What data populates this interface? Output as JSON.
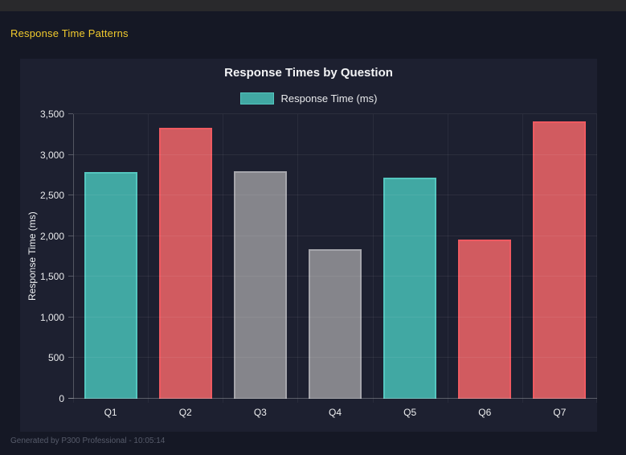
{
  "page": {
    "top_title": "Response Time Patterns",
    "footer": "Generated by P300 Professional - 10:05:14"
  },
  "colors": {
    "accent_yellow": "#f1ca2d",
    "page_bg": "#151825",
    "panel_bg": "#1d2030",
    "teal": "#41a8a3",
    "red": "#d15b60",
    "gray": "#85858b"
  },
  "chart_data": {
    "type": "bar",
    "title": "Response Times by Question",
    "legend_label": "Response Time (ms)",
    "legend_position": "top",
    "categories": [
      "Q1",
      "Q2",
      "Q3",
      "Q4",
      "Q5",
      "Q6",
      "Q7"
    ],
    "values": [
      2790,
      3330,
      2800,
      1840,
      2720,
      1960,
      3410
    ],
    "bar_fill_colors": [
      "#41a8a3",
      "#d15b60",
      "#85858b",
      "#85858b",
      "#41a8a3",
      "#d15b60",
      "#d15b60"
    ],
    "bar_border_colors": [
      "#54c6bf",
      "#ef5a61",
      "#a5a5ab",
      "#a5a5ab",
      "#54c6bf",
      "#ef5a61",
      "#ef5a61"
    ],
    "xlabel": "",
    "ylabel": "Response Time (ms)",
    "ylim": [
      0,
      3500
    ],
    "ytick_step": 500,
    "ytick_labels": [
      "0",
      "500",
      "1,000",
      "1,500",
      "2,000",
      "2,500",
      "3,000",
      "3,500"
    ],
    "grid": true
  }
}
